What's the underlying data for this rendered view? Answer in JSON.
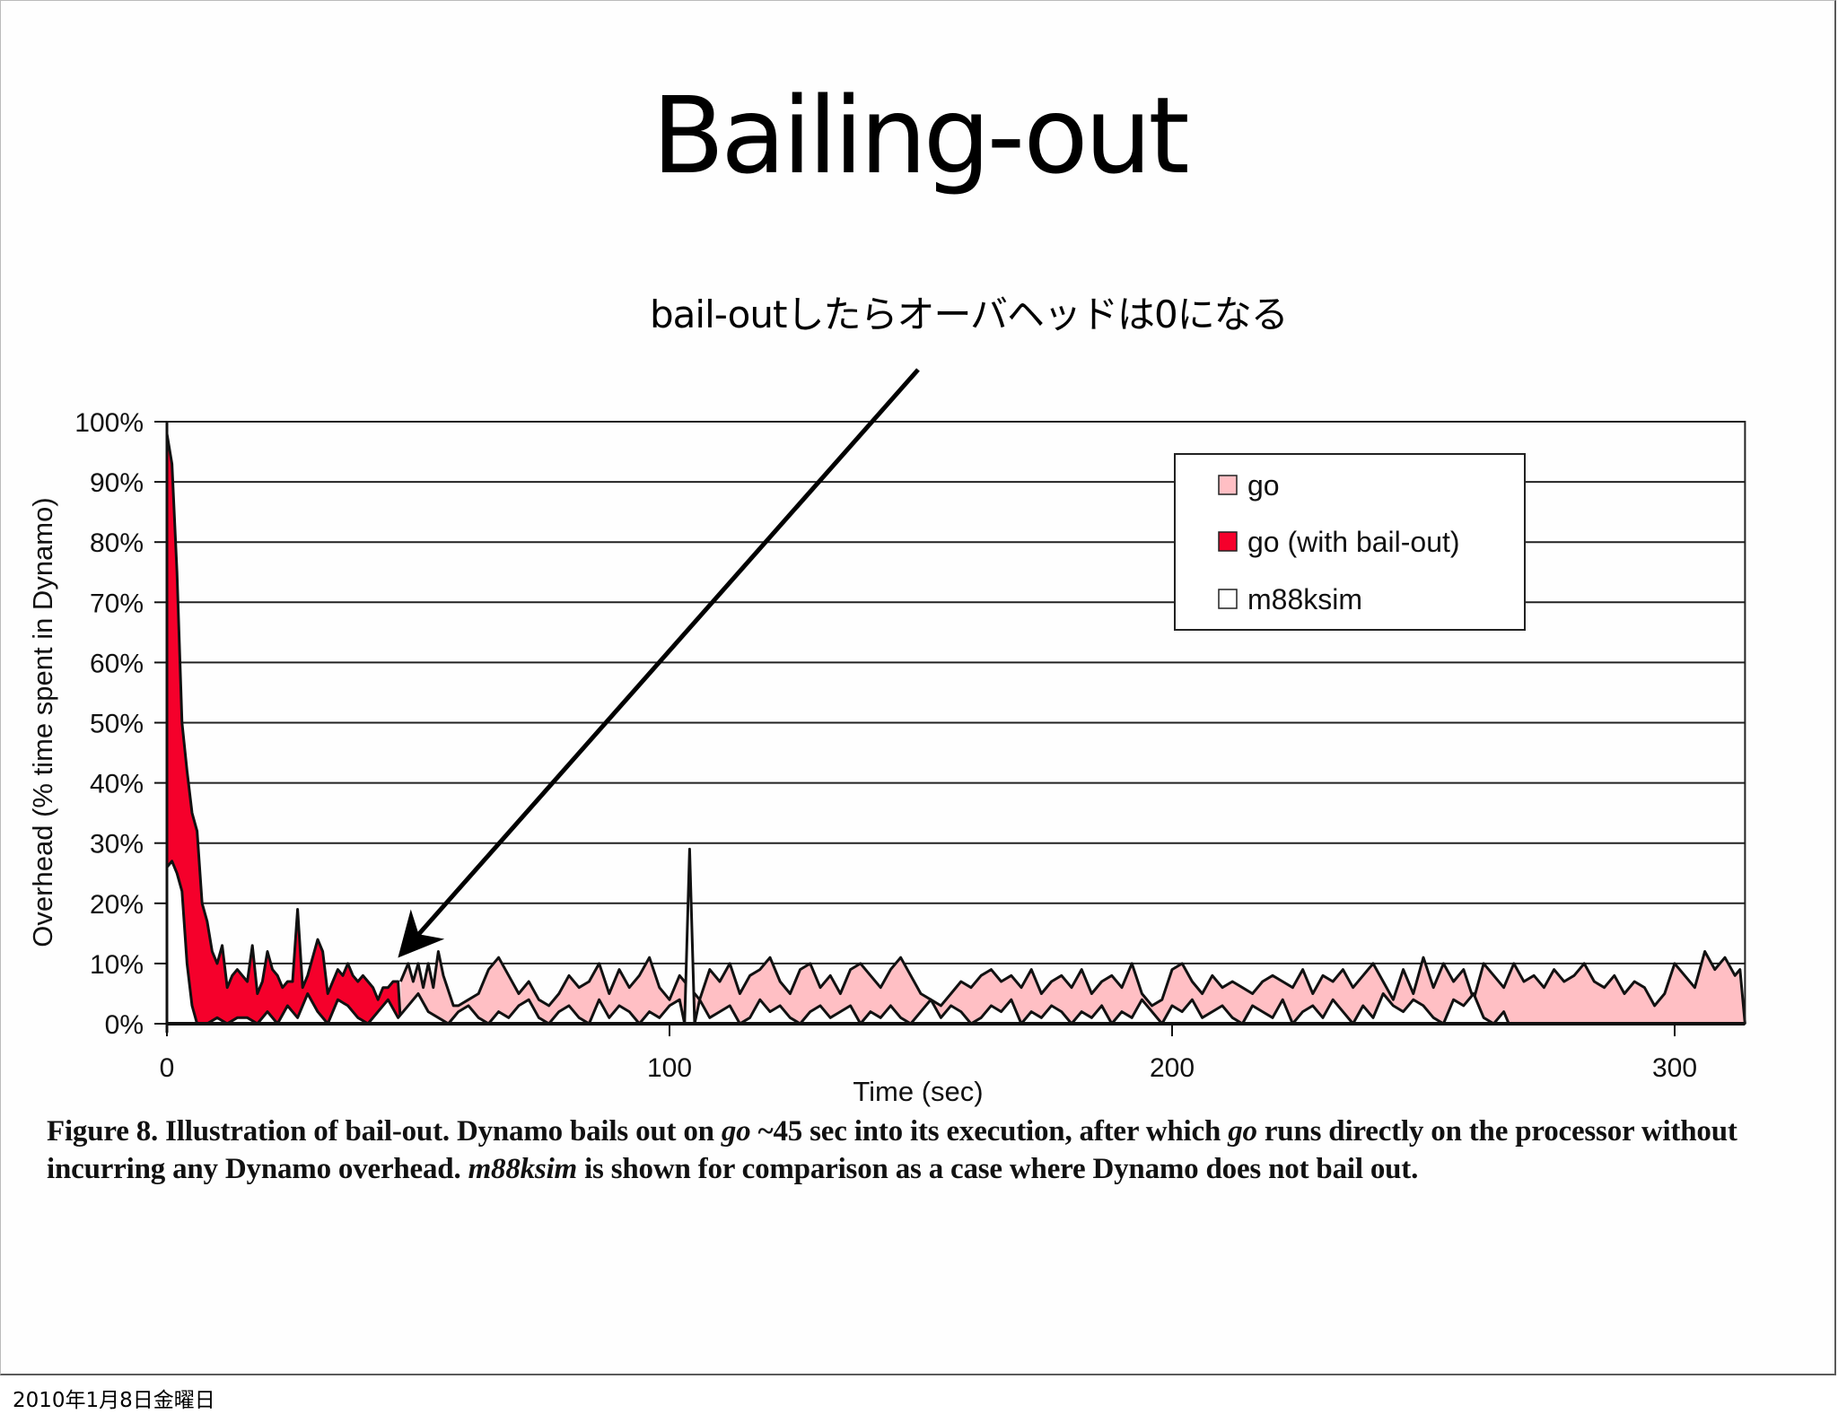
{
  "slide": {
    "title": "Bailing-out",
    "annotation": "bail-outしたらオーバヘッドは0になる",
    "footer_date": "2010年1月8日金曜日"
  },
  "caption": {
    "line1_a": "Figure 8. Illustration of bail-out. Dynamo bails out on ",
    "line1_go": "go",
    "line1_b": " ~45 sec into its execution, after which ",
    "line1_go2": "go",
    "line1_c": " runs directly on the processor without incurring any Dynamo overhead. ",
    "line2_m88": "m88ksim",
    "line2_b": " is shown for comparison as a case where Dynamo does not bail out."
  },
  "colors": {
    "go": "#FFBFC4",
    "go_bailout": "#F5002B",
    "m88ksim": "#FFFFFF",
    "line": "#111111"
  },
  "chart_data": {
    "type": "area",
    "title": "",
    "xlabel": "Time (sec)",
    "ylabel": "Overhead (% time spent in Dynamo)",
    "xlim": [
      0,
      314
    ],
    "ylim": [
      0,
      100
    ],
    "x_ticks": [
      0,
      100,
      200,
      300
    ],
    "y_ticks": [
      "0%",
      "10%",
      "20%",
      "30%",
      "40%",
      "50%",
      "60%",
      "70%",
      "80%",
      "90%",
      "100%"
    ],
    "grid": "horizontal",
    "legend_position": "upper-right",
    "legend": [
      "go",
      "go (with bail-out)",
      "m88ksim"
    ],
    "annotation": {
      "text": "bail-outしたらオーバヘッドは0になる",
      "points_to_x": 46,
      "points_to_y": 11
    },
    "series": [
      {
        "name": "go (with bail-out)",
        "x": [
          0,
          1,
          2,
          3,
          4,
          5,
          6,
          7,
          8,
          9,
          10,
          11,
          12,
          13,
          14,
          15,
          16,
          17,
          18,
          19,
          20,
          21,
          22,
          23,
          24,
          25,
          26,
          27,
          28,
          29,
          30,
          31,
          32,
          33,
          34,
          35,
          36,
          37,
          38,
          39,
          40,
          41,
          42,
          43,
          44,
          45,
          46,
          46.5
        ],
        "values": [
          98,
          93,
          75,
          50,
          42,
          35,
          32,
          20,
          17,
          12,
          10,
          13,
          6,
          8,
          9,
          8,
          7,
          13,
          5,
          7,
          12,
          9,
          8,
          6,
          7,
          7,
          19,
          6,
          8,
          11,
          14,
          12,
          5,
          7,
          9,
          8,
          10,
          8,
          7,
          8,
          7,
          6,
          4,
          6,
          6,
          7,
          7,
          0
        ]
      },
      {
        "name": "go",
        "x": [
          46.5,
          48,
          49,
          50,
          51,
          52,
          53,
          54,
          55,
          57,
          58,
          60,
          62,
          64,
          66,
          68,
          70,
          72,
          74,
          76,
          78,
          80,
          82,
          84,
          86,
          88,
          90,
          92,
          94,
          96,
          98,
          100,
          102,
          104,
          106,
          108,
          110,
          112,
          114,
          116,
          118,
          120,
          122,
          124,
          126,
          128,
          130,
          132,
          134,
          136,
          138,
          140,
          142,
          144,
          146,
          148,
          150,
          152,
          154,
          156,
          158,
          160,
          162,
          164,
          166,
          168,
          170,
          172,
          174,
          176,
          178,
          180,
          182,
          184,
          186,
          188,
          190,
          192,
          194,
          196,
          198,
          200,
          202,
          204,
          206,
          208,
          210,
          212,
          214,
          216,
          218,
          220,
          222,
          224,
          226,
          228,
          230,
          232,
          234,
          236,
          238,
          240,
          242,
          244,
          246,
          248,
          250,
          252,
          254,
          256,
          258,
          260,
          262,
          264,
          266,
          268,
          270,
          272,
          274,
          276,
          278,
          280,
          282,
          284,
          286,
          288,
          290,
          292,
          294,
          296,
          298,
          300,
          302,
          304,
          306,
          308,
          310,
          312,
          313,
          314
        ],
        "values": [
          7,
          10,
          7,
          10,
          6,
          10,
          6,
          12,
          8,
          3,
          3,
          4,
          5,
          9,
          11,
          8,
          5,
          7,
          4,
          3,
          5,
          8,
          6,
          7,
          10,
          5,
          9,
          6,
          8,
          11,
          6,
          4,
          8,
          6,
          4,
          9,
          7,
          10,
          5,
          8,
          9,
          11,
          7,
          5,
          9,
          10,
          6,
          8,
          5,
          9,
          10,
          8,
          6,
          9,
          11,
          8,
          5,
          4,
          3,
          5,
          7,
          6,
          8,
          9,
          7,
          8,
          6,
          9,
          5,
          7,
          8,
          6,
          9,
          5,
          7,
          8,
          6,
          10,
          5,
          3,
          4,
          9,
          10,
          7,
          5,
          8,
          6,
          7,
          6,
          5,
          7,
          8,
          7,
          6,
          9,
          5,
          8,
          7,
          9,
          6,
          8,
          10,
          7,
          4,
          9,
          5,
          11,
          6,
          10,
          7,
          9,
          4,
          10,
          8,
          6,
          10,
          7,
          8,
          6,
          9,
          7,
          8,
          10,
          7,
          6,
          8,
          5,
          7,
          6,
          3,
          5,
          10,
          8,
          6,
          12,
          9,
          11,
          8,
          9,
          0
        ]
      },
      {
        "name": "m88ksim",
        "x": [
          0,
          1,
          2,
          3,
          4,
          5,
          6,
          7,
          8,
          10,
          12,
          14,
          16,
          18,
          20,
          22,
          24,
          26,
          28,
          30,
          32,
          34,
          36,
          38,
          40,
          42,
          44,
          46,
          48,
          50,
          52,
          54,
          56,
          58,
          60,
          62,
          64,
          66,
          68,
          70,
          72,
          74,
          76,
          78,
          80,
          82,
          84,
          86,
          88,
          90,
          92,
          94,
          96,
          98,
          100,
          102,
          103,
          104,
          105,
          106,
          108,
          110,
          112,
          114,
          116,
          118,
          120,
          122,
          124,
          126,
          128,
          130,
          132,
          134,
          136,
          138,
          140,
          142,
          144,
          146,
          148,
          150,
          152,
          154,
          156,
          158,
          160,
          162,
          164,
          166,
          168,
          170,
          172,
          174,
          176,
          178,
          180,
          182,
          184,
          186,
          188,
          190,
          192,
          194,
          196,
          198,
          200,
          202,
          204,
          206,
          208,
          210,
          212,
          214,
          216,
          218,
          220,
          222,
          224,
          226,
          228,
          230,
          232,
          234,
          236,
          238,
          240,
          242,
          244,
          246,
          248,
          250,
          252,
          254,
          256,
          258,
          260,
          262,
          264,
          266,
          267
        ],
        "values": [
          26,
          27,
          25,
          22,
          10,
          3,
          0,
          0,
          0,
          1,
          0,
          1,
          1,
          0,
          2,
          0,
          3,
          1,
          5,
          2,
          0,
          4,
          3,
          1,
          0,
          2,
          4,
          1,
          3,
          5,
          2,
          1,
          0,
          2,
          3,
          1,
          0,
          2,
          1,
          3,
          4,
          1,
          0,
          2,
          3,
          1,
          0,
          4,
          1,
          3,
          2,
          0,
          2,
          1,
          3,
          4,
          0,
          29,
          0,
          4,
          1,
          2,
          3,
          0,
          1,
          4,
          2,
          3,
          1,
          0,
          2,
          3,
          1,
          2,
          3,
          0,
          2,
          1,
          3,
          1,
          0,
          2,
          4,
          1,
          3,
          2,
          0,
          1,
          3,
          2,
          4,
          0,
          2,
          1,
          3,
          2,
          0,
          2,
          1,
          3,
          0,
          2,
          1,
          4,
          2,
          0,
          3,
          2,
          4,
          1,
          2,
          3,
          1,
          0,
          3,
          2,
          1,
          4,
          0,
          2,
          3,
          1,
          4,
          2,
          0,
          3,
          1,
          5,
          3,
          2,
          4,
          3,
          1,
          0,
          4,
          3,
          5,
          1,
          0,
          2,
          0
        ]
      }
    ]
  }
}
